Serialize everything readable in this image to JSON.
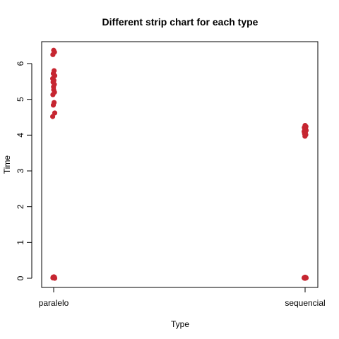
{
  "chart_data": {
    "type": "scatter",
    "title": "Different strip chart for each type",
    "xlabel": "Type",
    "ylabel": "Time",
    "categories": [
      "paralelo",
      "sequencial"
    ],
    "ylim": [
      0,
      6.4
    ],
    "yticks": [
      0,
      1,
      2,
      3,
      4,
      5,
      6
    ],
    "grid": false,
    "point_color": "#c62631",
    "axis_color": "#000000",
    "series": [
      {
        "category": "paralelo",
        "values": [
          6.37,
          6.32,
          6.25,
          5.8,
          5.72,
          5.66,
          5.58,
          5.53,
          5.48,
          5.42,
          5.35,
          5.27,
          5.2,
          5.13,
          4.91,
          4.84,
          4.62,
          4.52,
          0.04,
          0.03,
          0.03,
          0.02,
          0.02,
          0.02,
          0.01,
          0.01,
          0.01,
          0.0
        ]
      },
      {
        "category": "sequencial",
        "values": [
          4.27,
          4.24,
          4.21,
          4.19,
          4.16,
          4.13,
          4.1,
          4.07,
          4.04,
          4.01,
          3.97,
          0.03,
          0.02,
          0.02,
          0.02,
          0.01,
          0.01,
          0.01,
          0.0,
          0.0
        ]
      }
    ]
  }
}
